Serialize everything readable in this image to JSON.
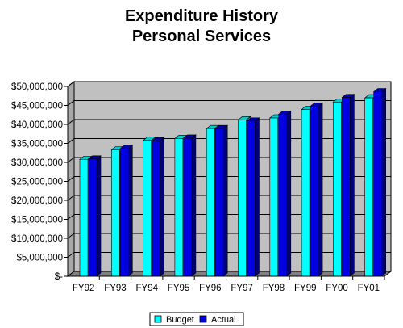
{
  "chart_data": {
    "type": "bar",
    "title": [
      "Expenditure History",
      "Personal Services"
    ],
    "categories": [
      "FY92",
      "FY93",
      "FY94",
      "FY95",
      "FY96",
      "FY97",
      "FY98",
      "FY99",
      "FY00",
      "FY01"
    ],
    "series": [
      {
        "name": "Budget",
        "color": "#00ffff",
        "values": [
          30800000,
          33300000,
          35800000,
          36300000,
          38900000,
          41200000,
          41700000,
          43900000,
          45900000,
          47000000
        ]
      },
      {
        "name": "Actual",
        "color": "#0000e0",
        "values": [
          30900000,
          33700000,
          35700000,
          36400000,
          38900000,
          40900000,
          42700000,
          44800000,
          47100000,
          48600000
        ]
      }
    ],
    "yticks": [
      "$-",
      "$5,000,000",
      "$10,000,000",
      "$15,000,000",
      "$20,000,000",
      "$25,000,000",
      "$30,000,000",
      "$35,000,000",
      "$40,000,000",
      "$45,000,000",
      "$50,000,000"
    ],
    "ylim": [
      0,
      50000000
    ],
    "ystep": 5000000,
    "grid": true,
    "legend_position": "bottom",
    "wall_color": "#c0c0c0"
  }
}
